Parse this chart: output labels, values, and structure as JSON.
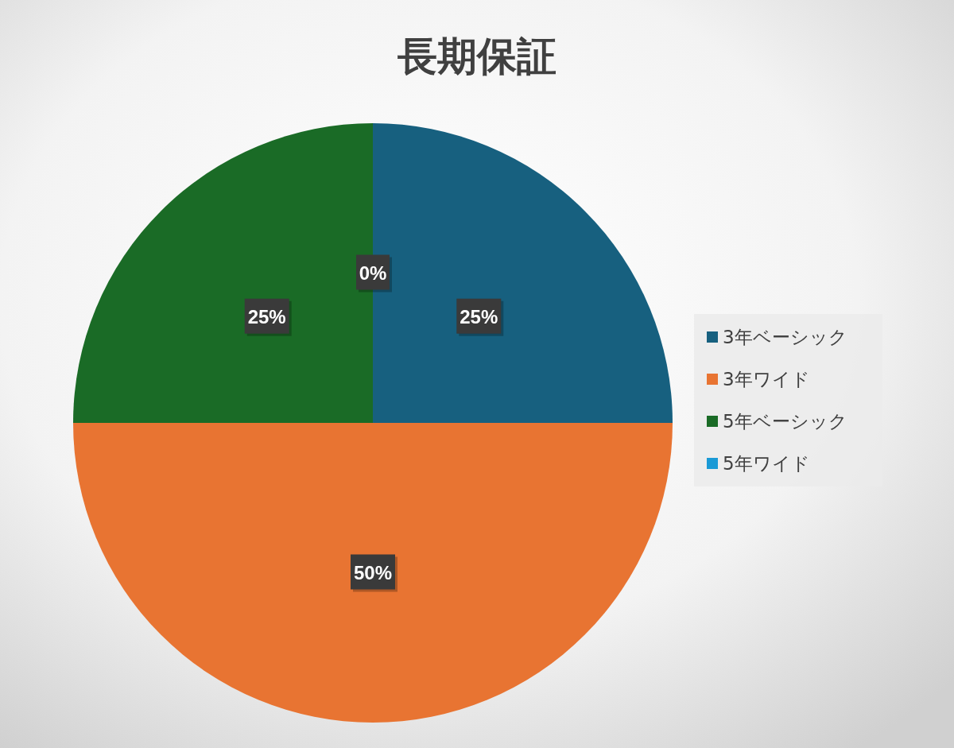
{
  "chart_data": {
    "type": "pie",
    "title": "長期保証",
    "categories": [
      "3年ベーシック",
      "3年ワイド",
      "5年ベーシック",
      "5年ワイド"
    ],
    "values": [
      25,
      50,
      25,
      0
    ],
    "colors": [
      "#17607f",
      "#e87432",
      "#1a6b26",
      "#1a9ad6"
    ],
    "value_labels": [
      "25%",
      "50%",
      "25%",
      "0%"
    ],
    "legend": "right"
  }
}
